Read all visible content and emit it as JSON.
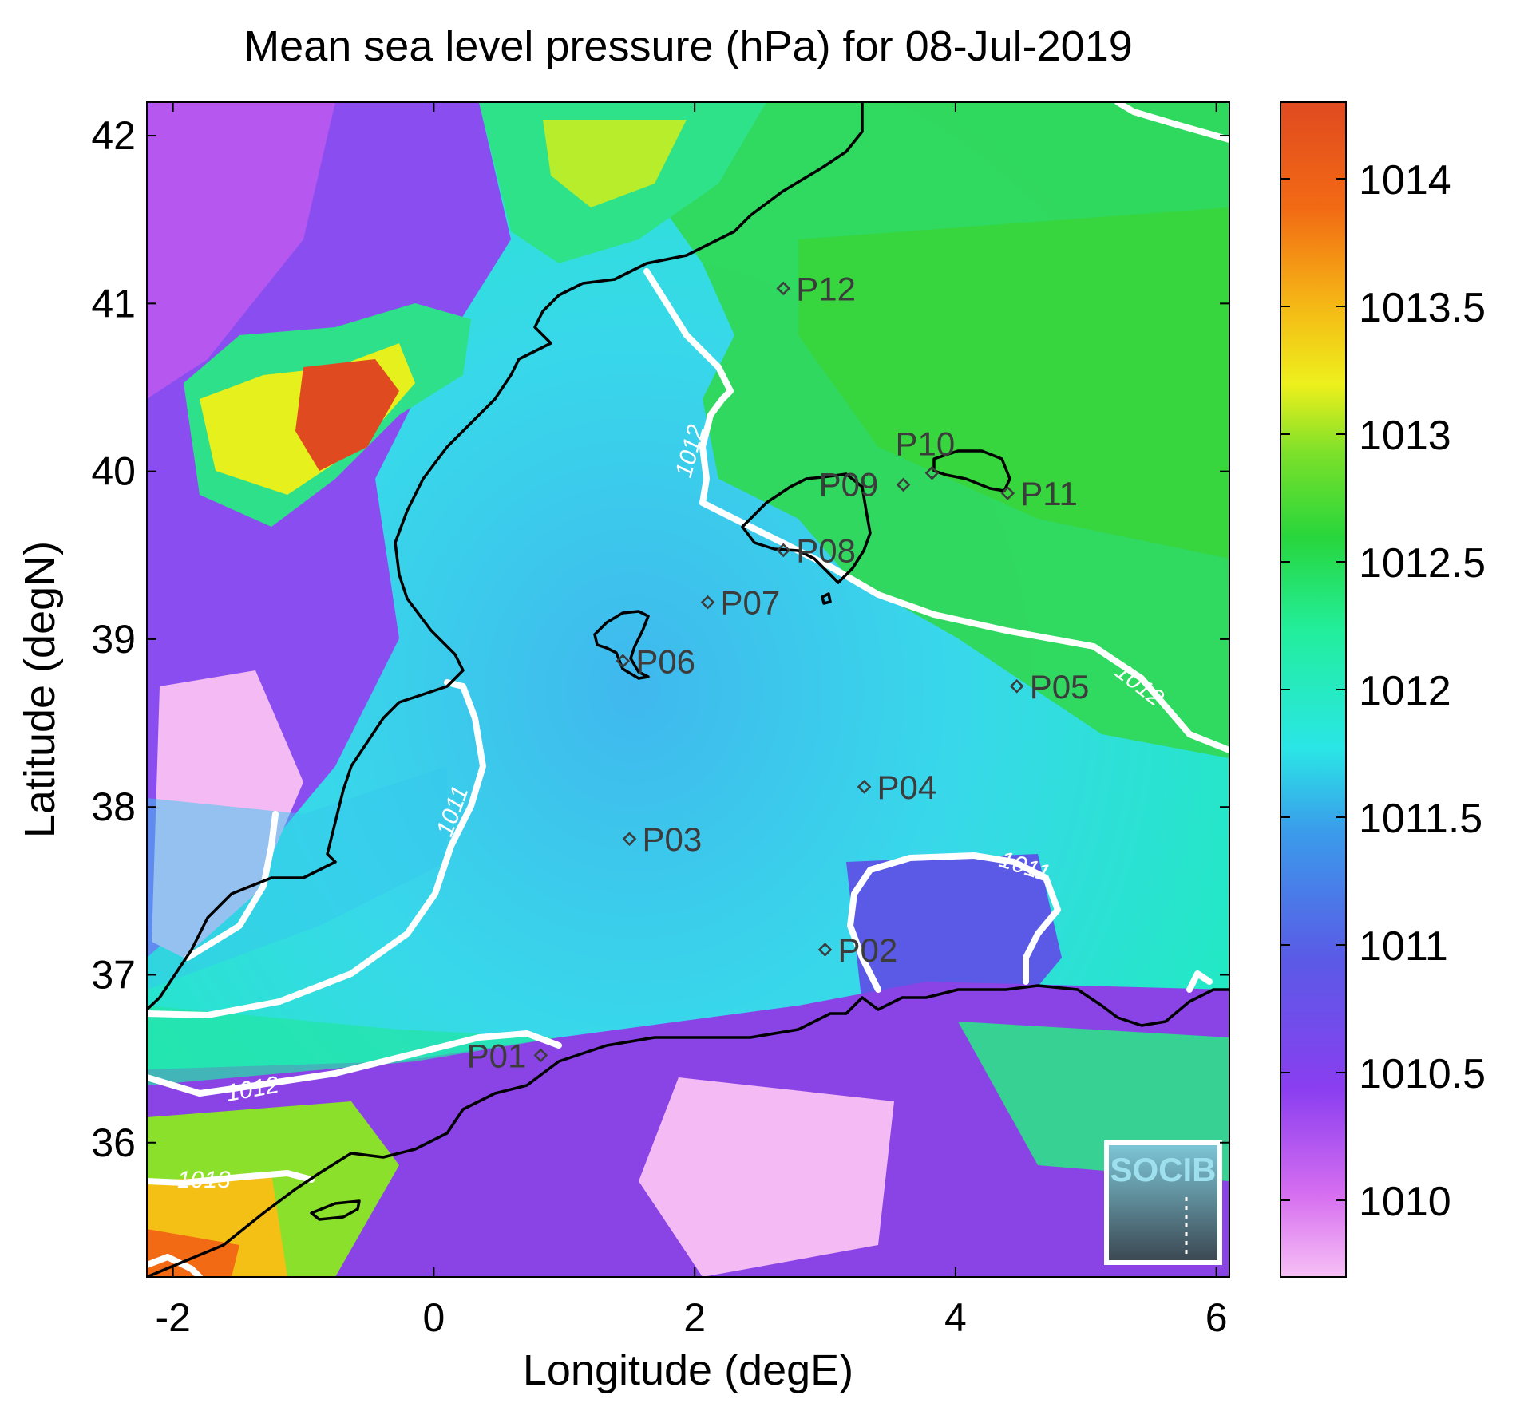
{
  "title": "Mean sea level pressure (hPa) for 08-Jul-2019",
  "xaxis": {
    "label": "Longitude (degE)",
    "range": [
      -2.2,
      6.1
    ],
    "ticks": [
      -2,
      0,
      2,
      4,
      6
    ],
    "tick_labels": [
      "-2",
      "0",
      "2",
      "4",
      "6"
    ]
  },
  "yaxis": {
    "label": "Latitude (degN)",
    "range": [
      35.2,
      42.2
    ],
    "ticks": [
      36,
      37,
      38,
      39,
      40,
      41,
      42
    ],
    "tick_labels": [
      "36",
      "37",
      "38",
      "39",
      "40",
      "41",
      "42"
    ]
  },
  "colorbar": {
    "range": [
      1009.7,
      1014.3
    ],
    "ticks": [
      1010,
      1010.5,
      1011,
      1011.5,
      1012,
      1012.5,
      1013,
      1013.5,
      1014
    ],
    "tick_labels": [
      "1010",
      "1010.5",
      "1011",
      "1011.5",
      "1012",
      "1012.5",
      "1013",
      "1013.5",
      "1014"
    ],
    "colormap": [
      "#f7c0f5",
      "#c43cf0",
      "#7a44e0",
      "#3e6fe6",
      "#38c8ee",
      "#22eeca",
      "#22e28a",
      "#2ed62e",
      "#86e02a",
      "#e6f01c",
      "#f5b515",
      "#f26a14",
      "#e04a20"
    ]
  },
  "stations": [
    {
      "name": "P01",
      "lon": 0.82,
      "lat": 36.52
    },
    {
      "name": "P02",
      "lon": 3.0,
      "lat": 37.15
    },
    {
      "name": "P03",
      "lon": 1.5,
      "lat": 37.81
    },
    {
      "name": "P04",
      "lon": 3.3,
      "lat": 38.12
    },
    {
      "name": "P05",
      "lon": 4.47,
      "lat": 38.72
    },
    {
      "name": "P06",
      "lon": 1.45,
      "lat": 38.87
    },
    {
      "name": "P07",
      "lon": 2.1,
      "lat": 39.22
    },
    {
      "name": "P08",
      "lon": 2.68,
      "lat": 39.53
    },
    {
      "name": "P09",
      "lon": 3.6,
      "lat": 39.92
    },
    {
      "name": "P10",
      "lon": 3.82,
      "lat": 39.99
    },
    {
      "name": "P11",
      "lon": 4.4,
      "lat": 39.87
    },
    {
      "name": "P12",
      "lon": 2.68,
      "lat": 41.09
    }
  ],
  "contour_labels": [
    "1011",
    "1011",
    "1012",
    "1012",
    "1012",
    "1013"
  ],
  "logo_text": "SOCIB",
  "colors": {
    "coastline": "#000000",
    "contour": "#ffffff",
    "station_marker": "#3c3c3c"
  }
}
